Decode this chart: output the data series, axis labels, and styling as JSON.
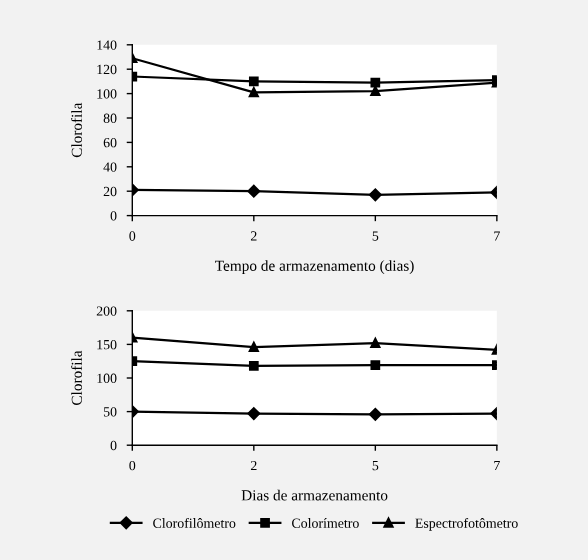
{
  "chart_data": [
    {
      "type": "line",
      "categories": [
        "0",
        "2",
        "5",
        "7"
      ],
      "xlabel": "Tempo de armazenamento (dias)",
      "ylabel": "Clorofila",
      "ylim": [
        0,
        140
      ],
      "yticks": [
        0,
        20,
        40,
        60,
        80,
        100,
        120,
        140
      ],
      "grid": false,
      "legend": false,
      "series": [
        {
          "color": "#000000",
          "marker": "diamond",
          "values": [
            21,
            20,
            17,
            19
          ]
        },
        {
          "color": "#000000",
          "marker": "square",
          "values": [
            114,
            110,
            109,
            111
          ]
        },
        {
          "color": "#000000",
          "marker": "triangle",
          "values": [
            129,
            101,
            102,
            109
          ]
        }
      ]
    },
    {
      "type": "line",
      "categories": [
        "0",
        "2",
        "5",
        "7"
      ],
      "xlabel": "Dias de armazenamento",
      "ylabel": "Clorofila",
      "ylim": [
        0,
        200
      ],
      "yticks": [
        0,
        50,
        100,
        150,
        200
      ],
      "grid": false,
      "legend": "bottom",
      "series": [
        {
          "name": "Clorofilômetro",
          "color": "#000000",
          "marker": "diamond",
          "values": [
            50,
            47,
            46,
            47
          ]
        },
        {
          "name": "Colorímetro",
          "color": "#000000",
          "marker": "square",
          "values": [
            125,
            118,
            119,
            119
          ]
        },
        {
          "name": "Espectrofotômetro",
          "color": "#000000",
          "marker": "triangle",
          "values": [
            160,
            146,
            152,
            142
          ]
        }
      ]
    }
  ]
}
